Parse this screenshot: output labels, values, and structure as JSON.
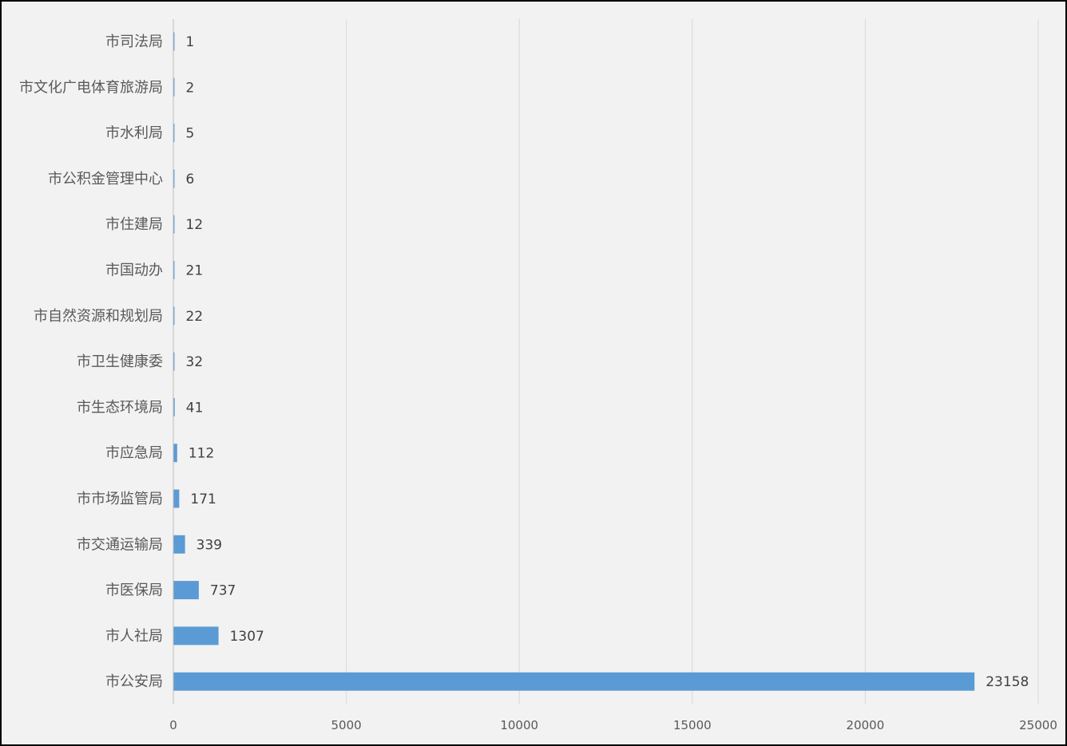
{
  "chart_data": {
    "type": "bar",
    "orientation": "horizontal",
    "categories": [
      "市司法局",
      "市文化广电体育旅游局",
      "市水利局",
      "市公积金管理中心",
      "市住建局",
      "市国动办",
      "市自然资源和规划局",
      "市卫生健康委",
      "市生态环境局",
      "市应急局",
      "市市场监管局",
      "市交通运输局",
      "市医保局",
      "市人社局",
      "市公安局"
    ],
    "values": [
      1,
      2,
      5,
      6,
      12,
      21,
      22,
      32,
      41,
      112,
      171,
      339,
      737,
      1307,
      23158
    ],
    "value_labels": [
      "1",
      "2",
      "5",
      "6",
      "12",
      "21",
      "22",
      "32",
      "41",
      "112",
      "171",
      "339",
      "737",
      "1307",
      "23158"
    ],
    "x_ticks": [
      "0",
      "5000",
      "10000",
      "15000",
      "20000",
      "25000"
    ],
    "xlim": [
      0,
      25000
    ],
    "title": "",
    "xlabel": "",
    "ylabel": "",
    "grid": "vertical",
    "legend": "none",
    "colors": {
      "bar": "#5b9bd5",
      "grid": "#d9d9d9",
      "axis": "#bfbfbf",
      "background": "#f2f2f2",
      "border": "#000000"
    }
  }
}
